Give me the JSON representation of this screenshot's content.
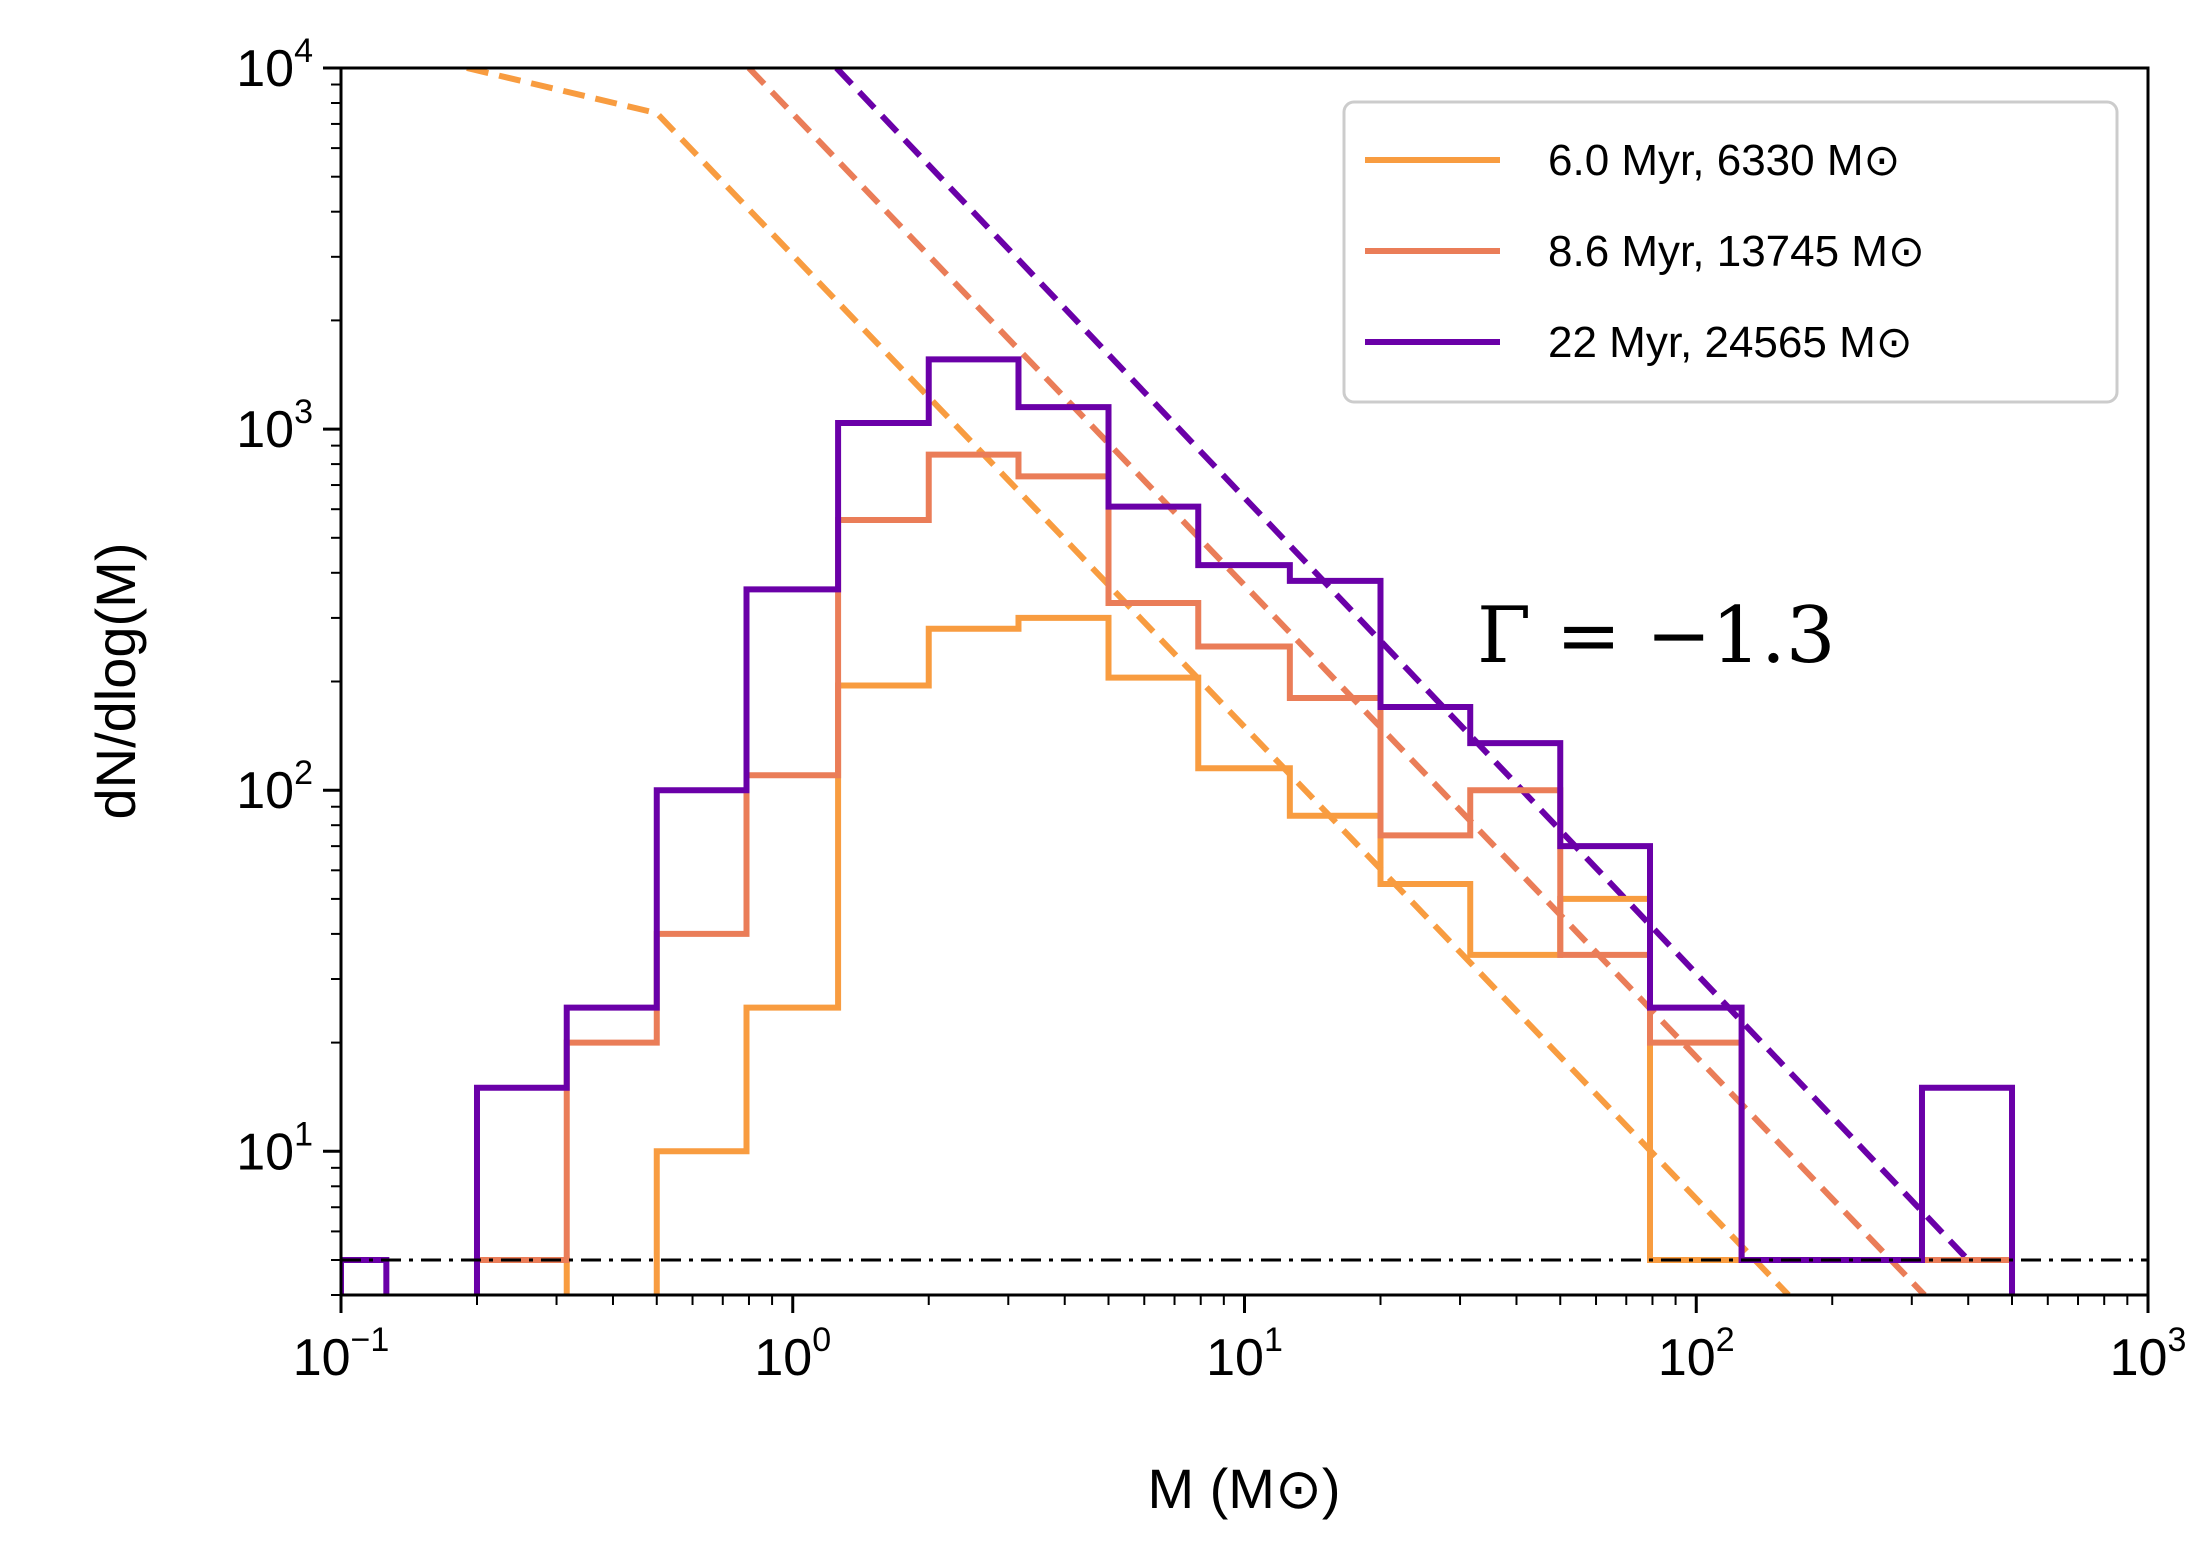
{
  "chart_data": {
    "type": "line",
    "xlabel": "M (M⊙)",
    "ylabel": "dN/dlog(M)",
    "xscale": "log",
    "yscale": "log",
    "xlim": [
      0.1,
      1000
    ],
    "ylim": [
      4,
      10000
    ],
    "x_ticks": [
      {
        "base": "10",
        "exp": "−1",
        "value": 0.1
      },
      {
        "base": "10",
        "exp": "0",
        "value": 1
      },
      {
        "base": "10",
        "exp": "1",
        "value": 10
      },
      {
        "base": "10",
        "exp": "2",
        "value": 100
      },
      {
        "base": "10",
        "exp": "3",
        "value": 1000
      }
    ],
    "y_ticks": [
      {
        "base": "10",
        "exp": "1",
        "value": 10
      },
      {
        "base": "10",
        "exp": "2",
        "value": 100
      },
      {
        "base": "10",
        "exp": "3",
        "value": 1000
      },
      {
        "base": "10",
        "exp": "4",
        "value": 10000
      }
    ],
    "bin_edges": [
      0.1,
      0.126,
      0.2,
      0.316,
      0.5,
      0.79,
      1.26,
      2.0,
      3.16,
      5.0,
      7.9,
      12.6,
      20.0,
      31.6,
      50.0,
      79.0,
      126.0,
      200.0,
      316.0,
      500.0
    ],
    "floor_value": 5,
    "series": [
      {
        "name": "6.0 Myr, 6330 M⊙",
        "color": "#f89c40",
        "hist": [
          null,
          null,
          5,
          null,
          10,
          25,
          195,
          280,
          300,
          205,
          115,
          85,
          55,
          35,
          50,
          5,
          5,
          5,
          5
        ],
        "fit_line": {
          "x": [
            0.19,
            0.5,
            160
          ],
          "y": [
            10000,
            7500,
            4
          ]
        }
      },
      {
        "name": "8.6 Myr, 13745 M⊙",
        "color": "#ea7d58",
        "hist": [
          null,
          null,
          5,
          20,
          40,
          110,
          560,
          850,
          740,
          330,
          250,
          180,
          75,
          100,
          35,
          20,
          5,
          5,
          5
        ],
        "fit_line": {
          "x": [
            0.8,
            320
          ],
          "y": [
            10000,
            4
          ]
        }
      },
      {
        "name": "22 Myr, 24565 M⊙",
        "color": "#6a00a8",
        "hist": [
          5,
          null,
          15,
          25,
          100,
          360,
          1040,
          1560,
          1150,
          610,
          420,
          380,
          170,
          135,
          70,
          25,
          5,
          5,
          15
        ],
        "fit_line": {
          "x": [
            1.25,
            400
          ],
          "y": [
            10000,
            5
          ]
        }
      }
    ],
    "reference_line": {
      "y": 5,
      "style": "dash-dot",
      "color": "#000000"
    },
    "annotation": "Γ = −1.3",
    "legend_placement": "top-right",
    "grid": false
  }
}
